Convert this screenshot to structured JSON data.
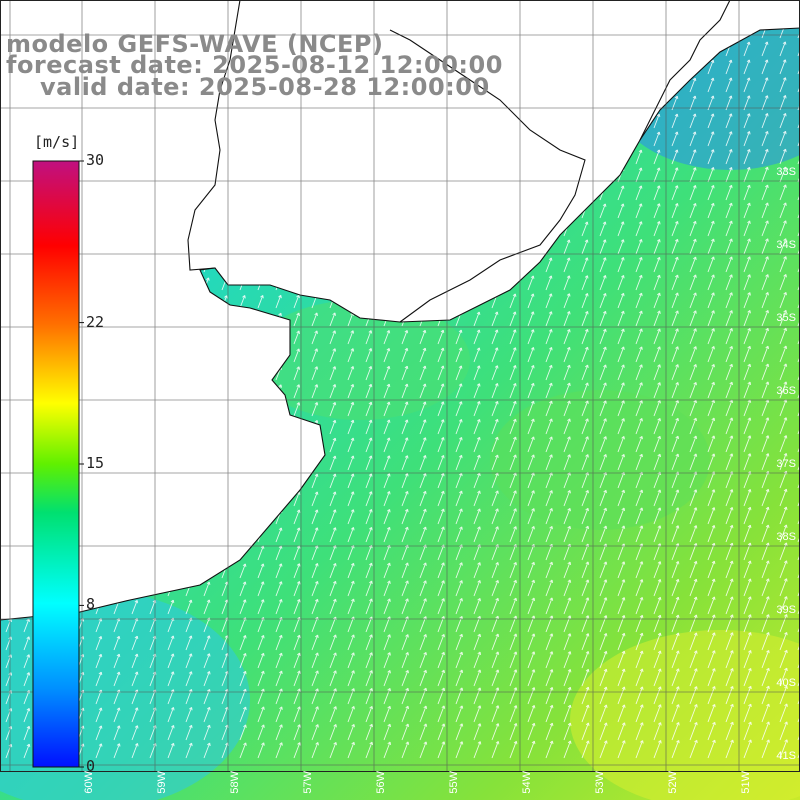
{
  "titles": {
    "line1": "modelo GEFS-WAVE (NCEP)",
    "line2": "forecast date: 2025-08-12 12:00:00",
    "line3": "valid date: 2025-08-28 12:00:00"
  },
  "colorbar": {
    "units": "[m/s]",
    "ticks": [
      "30",
      "22",
      "15",
      "8",
      "0"
    ],
    "tick_values": [
      30,
      22,
      15,
      8,
      0
    ],
    "range": [
      0,
      30
    ]
  },
  "map": {
    "lat_labels": [
      "33S",
      "34S",
      "35S",
      "36S",
      "37S",
      "38S",
      "39S",
      "40S",
      "41S"
    ],
    "lon_labels": [
      "60W",
      "59W",
      "58W",
      "57W",
      "56W",
      "55W",
      "54W",
      "53W",
      "52W",
      "51W"
    ],
    "field": "wind speed",
    "land_color": "#ffffff",
    "grid_color": "#555555"
  }
}
